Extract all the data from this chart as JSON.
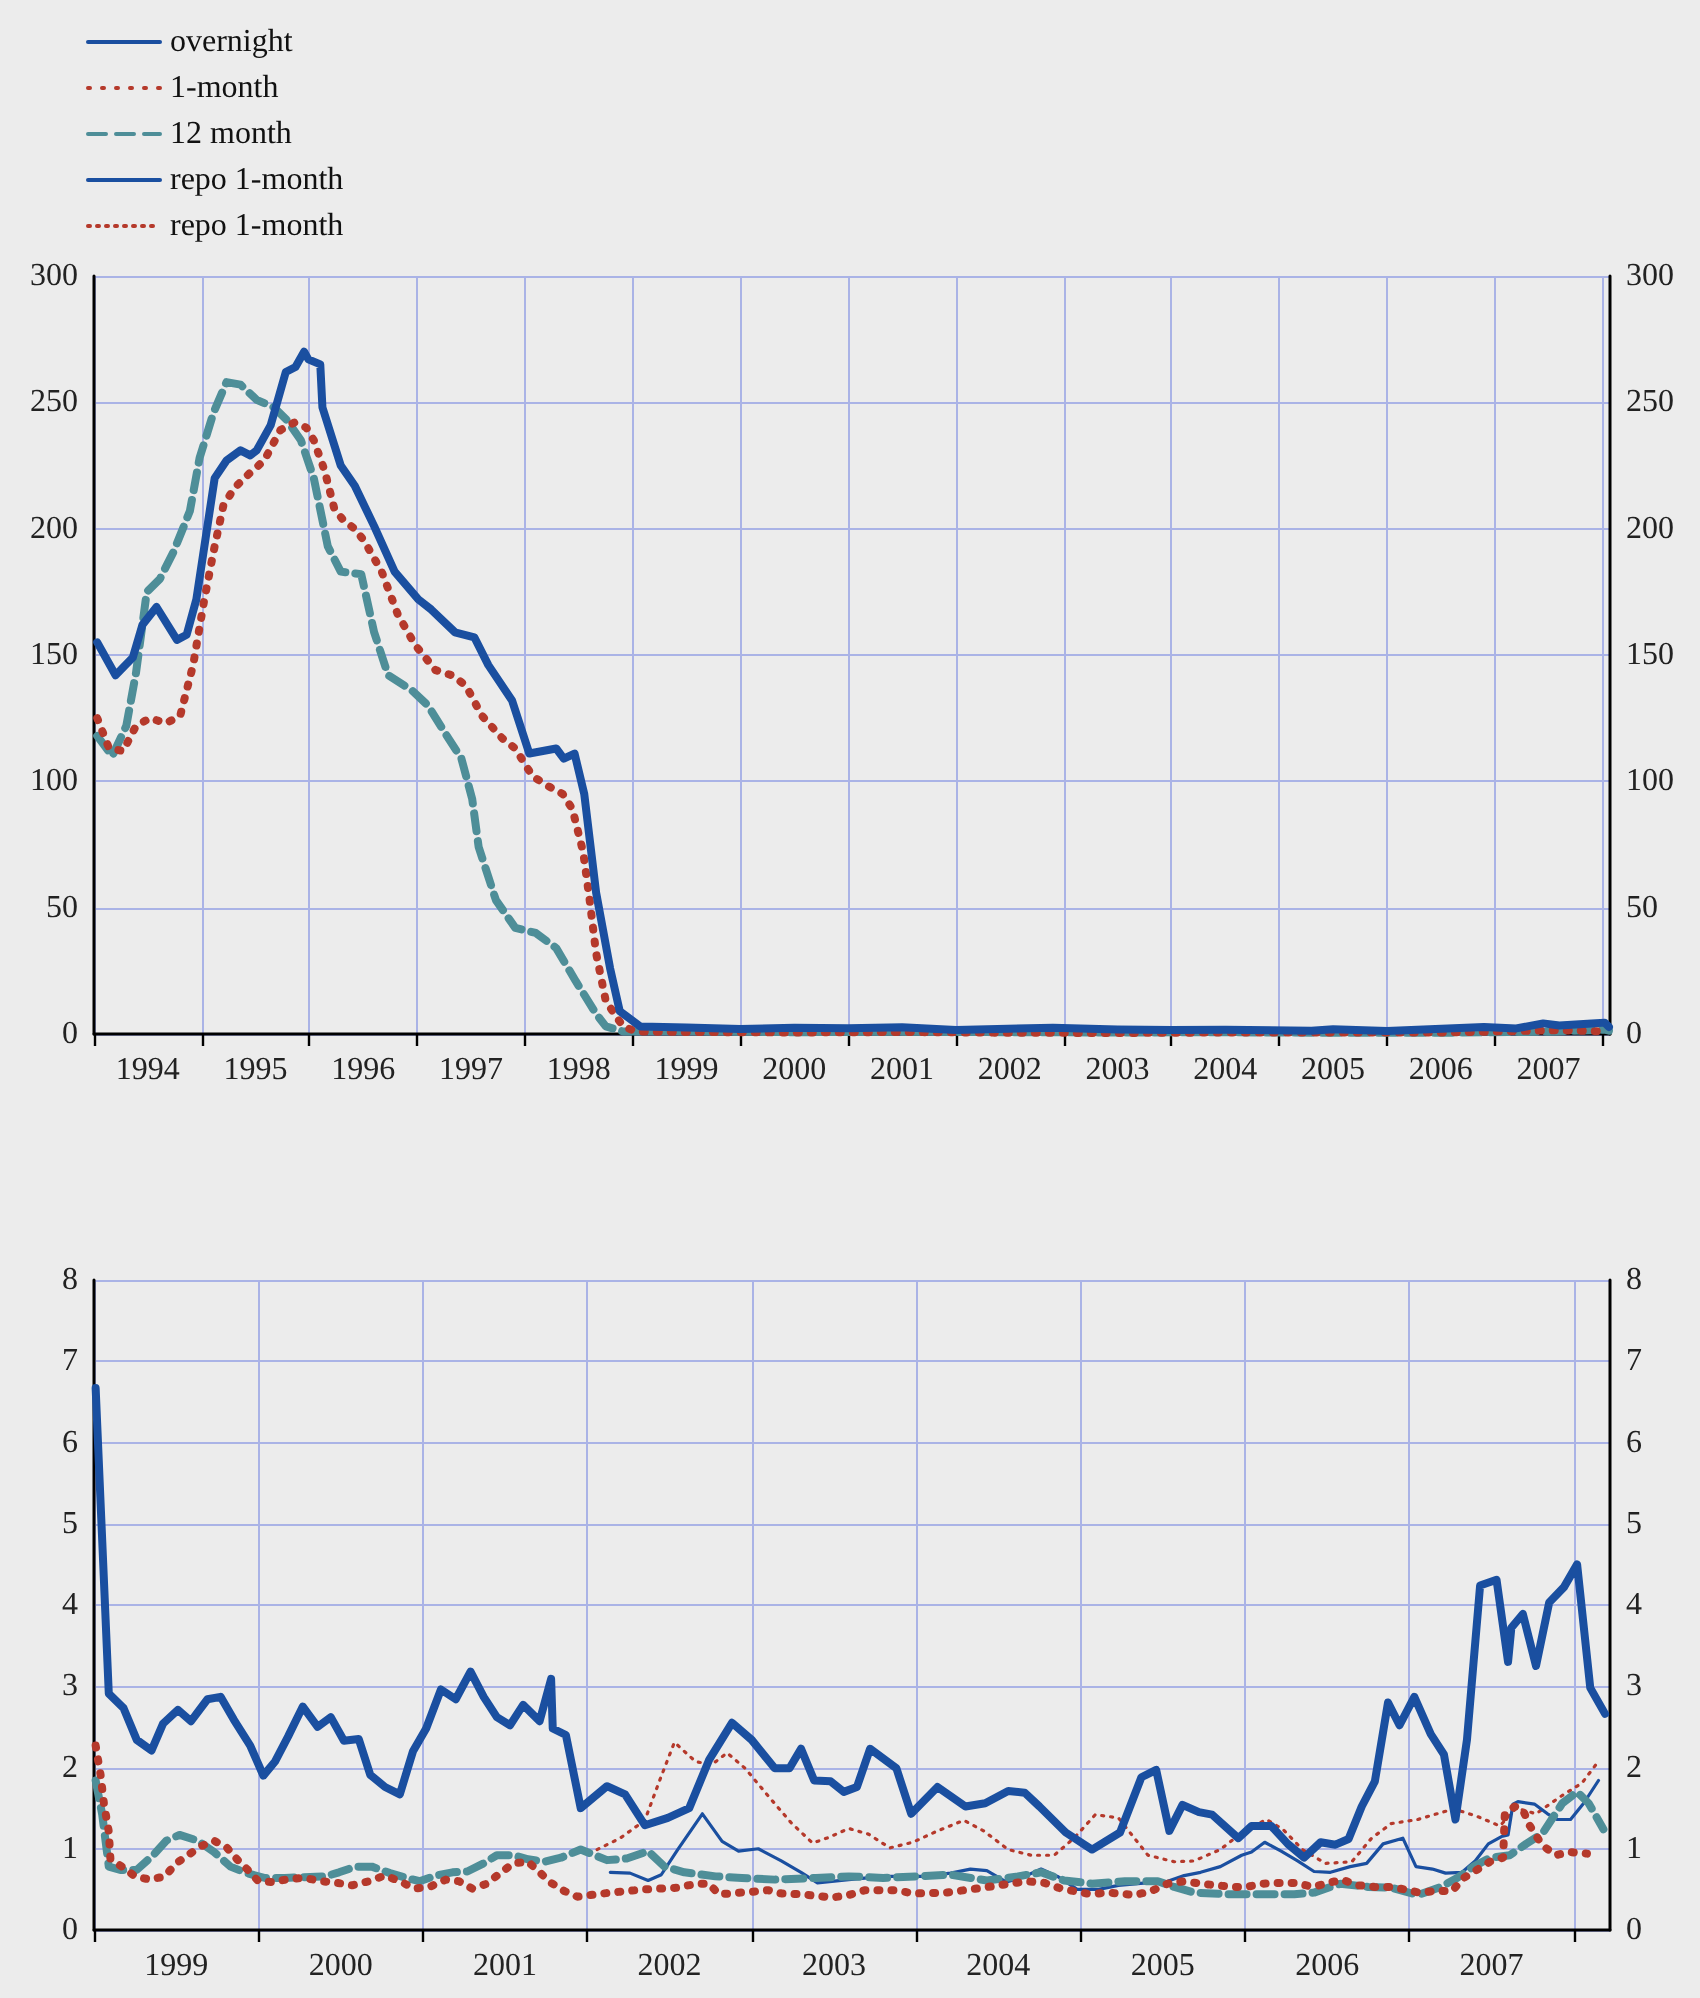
{
  "chart_data": [
    {
      "type": "line",
      "xlim": [
        1994,
        2008.07
      ],
      "ylim": [
        0,
        300
      ],
      "y2lim": [
        0,
        300
      ],
      "yticks": [
        0,
        50,
        100,
        150,
        200,
        250,
        300
      ],
      "y2ticks": [
        0,
        50,
        100,
        150,
        200,
        250,
        300
      ],
      "xticks": [
        {
          "value": 1994,
          "label": null
        },
        {
          "value": 1994.5,
          "label": "1994"
        },
        {
          "value": 1995,
          "label": null
        },
        {
          "value": 1995.5,
          "label": "1995"
        },
        {
          "value": 1996,
          "label": null
        },
        {
          "value": 1996.5,
          "label": "1996"
        },
        {
          "value": 1997,
          "label": null
        },
        {
          "value": 1997.5,
          "label": "1997"
        },
        {
          "value": 1998,
          "label": null
        },
        {
          "value": 1998.5,
          "label": "1998"
        },
        {
          "value": 1999,
          "label": null
        },
        {
          "value": 1999.5,
          "label": "1999"
        },
        {
          "value": 2000,
          "label": null
        },
        {
          "value": 2000.5,
          "label": "2000"
        },
        {
          "value": 2001,
          "label": null
        },
        {
          "value": 2001.5,
          "label": "2001"
        },
        {
          "value": 2002,
          "label": null
        },
        {
          "value": 2002.5,
          "label": "2002"
        },
        {
          "value": 2003,
          "label": null
        },
        {
          "value": 2003.5,
          "label": "2003"
        },
        {
          "value": 2004,
          "label": null
        },
        {
          "value": 2004.5,
          "label": "2004"
        },
        {
          "value": 2005,
          "label": null
        },
        {
          "value": 2005.5,
          "label": "2005"
        },
        {
          "value": 2006,
          "label": null
        },
        {
          "value": 2006.5,
          "label": "2006"
        },
        {
          "value": 2007,
          "label": null
        },
        {
          "value": 2007.5,
          "label": "2007"
        },
        {
          "value": 2008,
          "label": null
        }
      ],
      "grid": true,
      "marker": "none",
      "series": [
        {
          "color": "#1a4fa0",
          "line_style": "solid",
          "x": [
            1994.03,
            1994.2,
            1994.36,
            1994.45,
            1994.58,
            1994.77,
            1994.86,
            1994.95,
            1995.12,
            1995.23,
            1995.36,
            1995.45,
            1995.51,
            1995.64,
            1995.78,
            1995.87,
            1995.95,
            1995.99,
            1996.1,
            1996.12,
            1996.29,
            1996.42,
            1996.6,
            1996.79,
            1997.01,
            1997.13,
            1997.35,
            1997.53,
            1997.66,
            1997.88,
            1998.04,
            1998.29,
            1998.36,
            1998.46,
            1998.55,
            1998.66,
            1998.79,
            1998.88,
            1999.07,
            1999.5,
            2000,
            2000.5,
            2001,
            2001.5,
            2002,
            2002.9,
            2003.5,
            2004,
            2004.5,
            2005.3,
            2005.5,
            2006,
            2006.9,
            2007.2,
            2007.45,
            2007.6,
            2007.9,
            2008.02,
            2008.06
          ],
          "values": [
            155,
            142,
            149,
            162,
            169,
            156,
            158,
            172,
            220,
            227,
            231,
            229,
            231,
            241,
            262,
            264,
            270,
            267,
            265,
            248,
            225,
            217,
            201,
            183,
            172,
            168,
            159,
            157,
            146,
            132,
            111,
            113,
            109,
            111,
            95,
            56,
            26,
            9,
            3,
            2.6,
            2,
            2.5,
            2.3,
            2.7,
            1.6,
            2.5,
            1.8,
            1.6,
            1.7,
            1.3,
            1.9,
            1.2,
            2.8,
            2.2,
            4.2,
            3.4,
            4.2,
            4.5,
            2.8
          ]
        },
        {
          "color": "#b5392b",
          "line_style": "dotted",
          "x": [
            1994.03,
            1994.14,
            1994.27,
            1994.39,
            1994.52,
            1994.67,
            1994.8,
            1994.92,
            1995.02,
            1995.11,
            1995.2,
            1995.3,
            1995.42,
            1995.58,
            1995.73,
            1995.86,
            1995.97,
            1996.04,
            1996.14,
            1996.23,
            1996.32,
            1996.42,
            1996.51,
            1996.67,
            1996.82,
            1996.98,
            1997.17,
            1997.32,
            1997.45,
            1997.6,
            1997.79,
            1997.91,
            1998.07,
            1998.22,
            1998.35,
            1998.44,
            1998.54,
            1998.6,
            1998.66,
            1998.75,
            1998.91,
            1999.03,
            1999.5,
            2000.5,
            2001.5,
            2002.5,
            2003.5,
            2004.5,
            2005.5,
            2006.5,
            2007.6,
            2008.05
          ],
          "values": [
            125,
            113,
            112,
            122,
            125,
            123,
            126,
            146,
            171,
            191,
            209,
            216,
            221,
            227,
            239,
            242,
            240,
            235,
            223,
            208,
            203,
            200,
            195,
            183,
            166,
            154,
            144,
            142,
            138,
            126,
            117,
            113,
            102,
            98,
            95,
            89,
            72,
            53,
            32,
            13,
            3,
            1,
            0.8,
            0.6,
            0.8,
            0.5,
            0.4,
            0.6,
            0.6,
            0.6,
            1.5,
            1
          ]
        },
        {
          "color": "#4e8e98",
          "line_style": "dashed",
          "x": [
            1994.03,
            1994.17,
            1994.3,
            1994.39,
            1994.49,
            1994.61,
            1994.74,
            1994.89,
            1994.98,
            1995.11,
            1995.23,
            1995.36,
            1995.51,
            1995.67,
            1995.79,
            1995.92,
            1996.04,
            1996.17,
            1996.29,
            1996.48,
            1996.6,
            1996.73,
            1996.95,
            1997.1,
            1997.26,
            1997.41,
            1997.51,
            1997.57,
            1997.73,
            1997.91,
            1998.1,
            1998.29,
            1998.47,
            1998.66,
            1998.75,
            1998.91,
            1999.5,
            2000.5,
            2001.5,
            2002.5,
            2003.5,
            2004.5,
            2005.5,
            2006.5,
            2007.5,
            2008.02,
            2008.06
          ],
          "values": [
            118,
            110,
            122,
            143,
            175,
            180,
            191,
            207,
            228,
            246,
            258,
            257,
            251,
            248,
            243,
            235,
            220,
            193,
            183,
            182,
            159,
            142,
            136,
            130,
            119,
            109,
            93,
            74,
            53,
            42,
            40,
            34,
            21,
            8,
            3,
            1,
            1.1,
            0.7,
            0.9,
            0.7,
            0.6,
            0.7,
            0.5,
            0.5,
            0.9,
            1.7,
            1.3
          ]
        }
      ]
    },
    {
      "type": "line",
      "xlim": [
        1999,
        2008.22
      ],
      "ylim": [
        0,
        8
      ],
      "y2lim": [
        0,
        8
      ],
      "yticks": [
        0,
        1,
        2,
        3,
        4,
        5,
        6,
        7,
        8
      ],
      "y2ticks": [
        0,
        1,
        2,
        3,
        4,
        5,
        6,
        7,
        8
      ],
      "xticks": [
        {
          "value": 1999,
          "label": null
        },
        {
          "value": 1999.5,
          "label": "1999"
        },
        {
          "value": 2000,
          "label": null
        },
        {
          "value": 2000.5,
          "label": "2000"
        },
        {
          "value": 2001,
          "label": null
        },
        {
          "value": 2001.5,
          "label": "2001"
        },
        {
          "value": 2002,
          "label": null
        },
        {
          "value": 2002.5,
          "label": "2002"
        },
        {
          "value": 2003,
          "label": null
        },
        {
          "value": 2003.5,
          "label": "2003"
        },
        {
          "value": 2004,
          "label": null
        },
        {
          "value": 2004.5,
          "label": "2004"
        },
        {
          "value": 2005,
          "label": null
        },
        {
          "value": 2005.5,
          "label": "2005"
        },
        {
          "value": 2006,
          "label": null
        },
        {
          "value": 2006.5,
          "label": "2006"
        },
        {
          "value": 2007,
          "label": null
        },
        {
          "value": 2007.5,
          "label": "2007"
        },
        {
          "value": 2008,
          "label": null
        }
      ],
      "grid": true,
      "marker": "none",
      "legend": "top left",
      "series": [
        {
          "name": "overnight",
          "color": "#1a4fa0",
          "line_style": "solid",
          "x": [
            1999.01,
            1999.09,
            1999.18,
            1999.26,
            1999.35,
            1999.42,
            1999.51,
            1999.59,
            1999.69,
            1999.77,
            1999.85,
            1999.95,
            2000.03,
            2000.1,
            2000.18,
            2000.27,
            2000.36,
            2000.44,
            2000.52,
            2000.61,
            2000.68,
            2000.77,
            2000.86,
            2000.94,
            2001.02,
            2001.11,
            2001.2,
            2001.29,
            2001.37,
            2001.45,
            2001.53,
            2001.61,
            2001.71,
            2001.78,
            2001.79,
            2001.87,
            2001.96,
            2002.12,
            2002.23,
            2002.35,
            2002.49,
            2002.62,
            2002.74,
            2002.88,
            2003.0,
            2003.14,
            2003.23,
            2003.3,
            2003.38,
            2003.48,
            2003.56,
            2003.64,
            2003.72,
            2003.88,
            2003.97,
            2004.13,
            2004.3,
            2004.42,
            2004.56,
            2004.66,
            2004.75,
            2004.91,
            2005.07,
            2005.24,
            2005.37,
            2005.46,
            2005.54,
            2005.62,
            2005.72,
            2005.8,
            2005.96,
            2006.04,
            2006.16,
            2006.26,
            2006.36,
            2006.46,
            2006.55,
            2006.63,
            2006.71,
            2006.79,
            2006.87,
            2006.94,
            2007.03,
            2007.13,
            2007.21,
            2007.28,
            2007.35,
            2007.43,
            2007.53,
            2007.6,
            2007.62,
            2007.69,
            2007.77,
            2007.85,
            2007.94,
            2008.02,
            2008.1,
            2008.19
          ],
          "values": [
            6.67,
            2.91,
            2.73,
            2.34,
            2.21,
            2.54,
            2.71,
            2.57,
            2.84,
            2.87,
            2.59,
            2.27,
            1.9,
            2.07,
            2.38,
            2.75,
            2.5,
            2.62,
            2.33,
            2.35,
            1.91,
            1.76,
            1.67,
            2.2,
            2.48,
            2.96,
            2.84,
            3.18,
            2.87,
            2.62,
            2.52,
            2.77,
            2.57,
            3.09,
            2.48,
            2.4,
            1.5,
            1.77,
            1.67,
            1.29,
            1.38,
            1.5,
            2.09,
            2.55,
            2.34,
            1.99,
            1.99,
            2.23,
            1.84,
            1.83,
            1.7,
            1.76,
            2.23,
            1.99,
            1.43,
            1.76,
            1.52,
            1.56,
            1.71,
            1.69,
            1.52,
            1.2,
            0.99,
            1.2,
            1.88,
            1.97,
            1.22,
            1.54,
            1.45,
            1.42,
            1.13,
            1.28,
            1.28,
            1.06,
            0.89,
            1.08,
            1.05,
            1.12,
            1.52,
            1.83,
            2.8,
            2.52,
            2.87,
            2.41,
            2.16,
            1.36,
            2.34,
            4.24,
            4.31,
            3.3,
            3.72,
            3.89,
            3.25,
            4.03,
            4.22,
            4.5,
            2.98,
            2.66
          ]
        },
        {
          "name": "1-month",
          "color": "#b5392b",
          "line_style": "dotted",
          "x": [
            1999.01,
            1999.04,
            1999.06,
            1999.09,
            1999.1,
            1999.17,
            1999.25,
            1999.34,
            1999.43,
            1999.5,
            1999.57,
            1999.65,
            1999.73,
            1999.81,
            1999.87,
            1999.94,
            2000.0,
            2000.09,
            2000.19,
            2000.28,
            2000.39,
            2000.48,
            2000.57,
            2000.67,
            2000.77,
            2000.86,
            2000.95,
            2001.04,
            2001.14,
            2001.22,
            2001.3,
            2001.39,
            2001.47,
            2001.55,
            2001.64,
            2001.71,
            2001.78,
            2001.86,
            2001.94,
            2002.14,
            2002.35,
            2002.55,
            2002.66,
            2002.74,
            2002.8,
            2003.0,
            2003.1,
            2003.18,
            2003.3,
            2003.49,
            2003.59,
            2003.69,
            2003.88,
            2003.98,
            2004.18,
            2004.37,
            2004.57,
            2004.67,
            2004.78,
            2004.88,
            2005.06,
            2005.17,
            2005.33,
            2005.43,
            2005.53,
            2005.63,
            2005.73,
            2005.83,
            2005.92,
            2006.01,
            2006.11,
            2006.21,
            2006.31,
            2006.41,
            2006.51,
            2006.59,
            2006.69,
            2006.79,
            2006.88,
            2006.97,
            2007.06,
            2007.16,
            2007.26,
            2007.33,
            2007.41,
            2007.49,
            2007.57,
            2007.58,
            2007.64,
            2007.69,
            2007.73,
            2007.79,
            2007.83,
            2007.89,
            2007.97,
            2008.08
          ],
          "values": [
            2.27,
            1.91,
            1.56,
            1.21,
            0.87,
            0.78,
            0.66,
            0.62,
            0.66,
            0.82,
            0.92,
            1.03,
            1.1,
            1.01,
            0.87,
            0.73,
            0.6,
            0.59,
            0.63,
            0.64,
            0.6,
            0.58,
            0.55,
            0.6,
            0.67,
            0.6,
            0.51,
            0.53,
            0.62,
            0.6,
            0.51,
            0.57,
            0.7,
            0.82,
            0.84,
            0.71,
            0.58,
            0.48,
            0.41,
            0.46,
            0.5,
            0.52,
            0.57,
            0.57,
            0.44,
            0.47,
            0.49,
            0.45,
            0.44,
            0.4,
            0.43,
            0.49,
            0.49,
            0.45,
            0.46,
            0.51,
            0.57,
            0.6,
            0.58,
            0.51,
            0.44,
            0.46,
            0.43,
            0.48,
            0.57,
            0.6,
            0.57,
            0.55,
            0.53,
            0.53,
            0.57,
            0.58,
            0.58,
            0.53,
            0.58,
            0.62,
            0.55,
            0.53,
            0.53,
            0.5,
            0.46,
            0.48,
            0.48,
            0.64,
            0.74,
            0.84,
            0.89,
            1.42,
            1.52,
            1.48,
            1.29,
            1.1,
            1.01,
            0.92,
            0.96,
            0.94
          ]
        },
        {
          "name": "12 month",
          "color": "#4e8e98",
          "line_style": "dashed",
          "x": [
            1999.01,
            1999.05,
            1999.09,
            1999.16,
            1999.26,
            1999.36,
            1999.44,
            1999.52,
            1999.63,
            1999.73,
            1999.83,
            1999.93,
            2000.04,
            2000.16,
            2000.27,
            2000.41,
            2000.49,
            2000.59,
            2000.69,
            2000.8,
            2000.9,
            2000.98,
            2001.08,
            2001.18,
            2001.27,
            2001.37,
            2001.45,
            2001.55,
            2001.64,
            2001.74,
            2001.84,
            2001.96,
            2002.12,
            2002.24,
            2002.37,
            2002.47,
            2002.59,
            2002.78,
            2002.94,
            2003.14,
            2003.39,
            2003.59,
            2003.8,
            2004.0,
            2004.21,
            2004.43,
            2004.62,
            2004.76,
            2004.9,
            2005.07,
            2005.27,
            2005.47,
            2005.57,
            2005.69,
            2005.89,
            2006.1,
            2006.3,
            2006.42,
            2006.58,
            2006.75,
            2006.89,
            2007.05,
            2007.19,
            2007.29,
            2007.39,
            2007.49,
            2007.61,
            2007.71,
            2007.81,
            2007.93,
            2008.02,
            2008.09,
            2008.18
          ],
          "values": [
            1.84,
            1.42,
            0.78,
            0.74,
            0.74,
            0.92,
            1.1,
            1.17,
            1.1,
            0.96,
            0.78,
            0.7,
            0.64,
            0.64,
            0.65,
            0.66,
            0.71,
            0.78,
            0.78,
            0.7,
            0.64,
            0.6,
            0.67,
            0.71,
            0.72,
            0.82,
            0.92,
            0.92,
            0.87,
            0.84,
            0.89,
            0.99,
            0.86,
            0.88,
            0.97,
            0.78,
            0.71,
            0.66,
            0.64,
            0.62,
            0.64,
            0.66,
            0.64,
            0.66,
            0.68,
            0.61,
            0.66,
            0.71,
            0.61,
            0.57,
            0.6,
            0.6,
            0.53,
            0.46,
            0.44,
            0.44,
            0.44,
            0.46,
            0.57,
            0.53,
            0.52,
            0.43,
            0.53,
            0.64,
            0.78,
            0.89,
            0.92,
            1.06,
            1.19,
            1.56,
            1.7,
            1.56,
            1.24
          ]
        },
        {
          "name": "repo 1-month",
          "color": "#1a4fa0",
          "line_style": "solid",
          "x": [
            2002.14,
            2002.26,
            2002.37,
            2002.45,
            2002.55,
            2002.7,
            2002.82,
            2002.92,
            2003.04,
            2003.18,
            2003.3,
            2003.4,
            2003.59,
            2003.8,
            2004.04,
            2004.21,
            2004.33,
            2004.43,
            2004.55,
            2004.66,
            2004.76,
            2004.86,
            2004.98,
            2005.11,
            2005.23,
            2005.4,
            2005.53,
            2005.63,
            2005.73,
            2005.85,
            2005.98,
            2006.04,
            2006.12,
            2006.22,
            2006.32,
            2006.42,
            2006.52,
            2006.64,
            2006.74,
            2006.84,
            2006.96,
            2007.04,
            2007.14,
            2007.22,
            2007.32,
            2007.4,
            2007.48,
            2007.56,
            2007.6,
            2007.63,
            2007.66,
            2007.76,
            2007.84,
            2007.9,
            2007.98,
            2008.06,
            2008.15
          ],
          "values": [
            0.71,
            0.7,
            0.61,
            0.68,
            0.99,
            1.43,
            1.09,
            0.97,
            1.0,
            0.85,
            0.71,
            0.58,
            0.62,
            0.66,
            0.66,
            0.7,
            0.75,
            0.73,
            0.59,
            0.66,
            0.75,
            0.66,
            0.5,
            0.5,
            0.55,
            0.58,
            0.6,
            0.67,
            0.71,
            0.78,
            0.92,
            0.96,
            1.08,
            0.97,
            0.85,
            0.72,
            0.71,
            0.78,
            0.82,
            1.06,
            1.13,
            0.78,
            0.75,
            0.7,
            0.71,
            0.85,
            1.06,
            1.15,
            1.17,
            1.55,
            1.58,
            1.55,
            1.43,
            1.36,
            1.36,
            1.56,
            1.84
          ]
        },
        {
          "name": "repo 1-month",
          "color": "#b5392b",
          "line_style": "dotted",
          "x": [
            2002.06,
            2002.2,
            2002.35,
            2002.44,
            2002.53,
            2002.66,
            2002.76,
            2002.85,
            2002.96,
            2003.1,
            2003.24,
            2003.37,
            2003.47,
            2003.59,
            2003.71,
            2003.84,
            2003.98,
            2004.12,
            2004.29,
            2004.41,
            2004.56,
            2004.7,
            2004.84,
            2004.96,
            2005.09,
            2005.23,
            2005.41,
            2005.57,
            2005.69,
            2005.85,
            2005.99,
            2006.13,
            2006.23,
            2006.35,
            2006.49,
            2006.65,
            2006.77,
            2006.89,
            2007.05,
            2007.15,
            2007.27,
            2007.41,
            2007.55,
            2007.65,
            2007.77,
            2007.91,
            2008.05,
            2008.14
          ],
          "values": [
            0.99,
            1.13,
            1.35,
            1.84,
            2.31,
            2.07,
            2.04,
            2.18,
            1.99,
            1.65,
            1.32,
            1.07,
            1.14,
            1.25,
            1.18,
            1.01,
            1.08,
            1.21,
            1.35,
            1.22,
            0.99,
            0.92,
            0.92,
            1.13,
            1.42,
            1.38,
            0.92,
            0.84,
            0.85,
            0.99,
            1.21,
            1.36,
            1.24,
            0.99,
            0.82,
            0.84,
            1.13,
            1.31,
            1.36,
            1.42,
            1.49,
            1.4,
            1.28,
            1.5,
            1.43,
            1.63,
            1.81,
            2.05
          ]
        }
      ]
    }
  ]
}
